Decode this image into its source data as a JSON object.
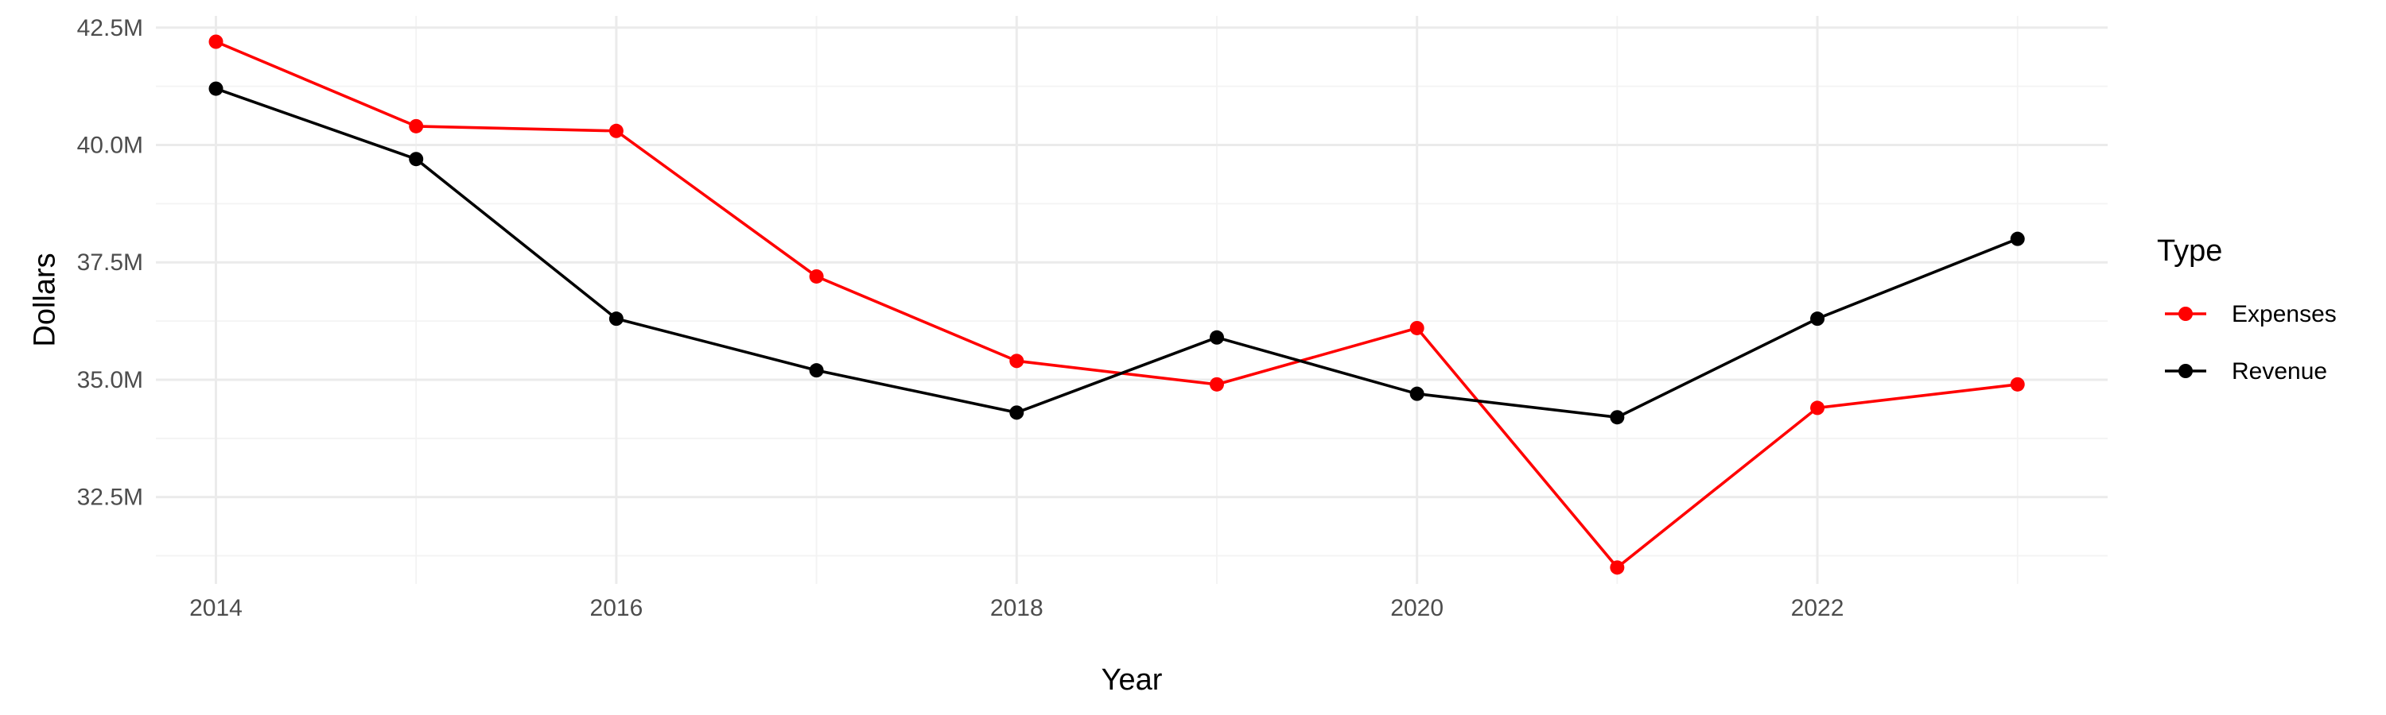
{
  "chart_data": {
    "type": "line",
    "title": "",
    "xlabel": "Year",
    "ylabel": "Dollars",
    "x": [
      2014,
      2015,
      2016,
      2017,
      2018,
      2019,
      2020,
      2021,
      2022,
      2023
    ],
    "xlim": [
      2013.7,
      2023.45
    ],
    "ylim": [
      30.65,
      42.75
    ],
    "x_ticks": [
      2014,
      2016,
      2018,
      2020,
      2022
    ],
    "x_tick_labels": [
      "2014",
      "2016",
      "2018",
      "2020",
      "2022"
    ],
    "y_ticks": [
      32.5,
      35.0,
      37.5,
      40.0,
      42.5
    ],
    "y_tick_labels": [
      "32.5M",
      "35.0M",
      "37.5M",
      "40.0M",
      "42.5M"
    ],
    "grid": true,
    "legend": {
      "title": "Type",
      "position": "right"
    },
    "series": [
      {
        "name": "Expenses",
        "color": "#ff0000",
        "values": [
          42.2,
          40.4,
          40.3,
          37.2,
          35.4,
          34.9,
          36.1,
          31.0,
          34.4,
          34.9
        ]
      },
      {
        "name": "Revenue",
        "color": "#000000",
        "values": [
          41.2,
          39.7,
          36.3,
          35.2,
          34.3,
          35.9,
          34.7,
          34.2,
          36.3,
          38.0
        ]
      }
    ]
  }
}
